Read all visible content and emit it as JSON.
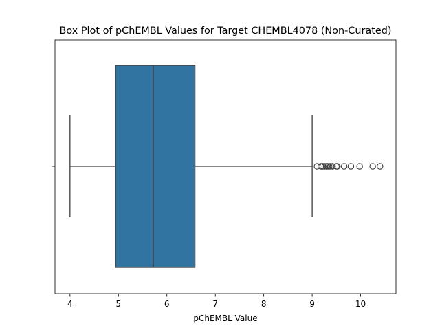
{
  "chart_data": {
    "type": "box",
    "title": "Box Plot of pChEMBL Values for Target CHEMBL4078 (Non-Curated)",
    "xlabel": "pChEMBL Value",
    "ylabel": "",
    "orientation": "horizontal",
    "xlim": [
      3.69,
      10.73
    ],
    "x_ticks": [
      4,
      5,
      6,
      7,
      8,
      9,
      10
    ],
    "grid": false,
    "box": {
      "whisker_low": 4.0,
      "q1": 4.94,
      "median": 5.72,
      "q3": 6.58,
      "whisker_high": 9.0
    },
    "outliers": [
      9.1,
      9.18,
      9.22,
      9.26,
      9.29,
      9.32,
      9.35,
      9.38,
      9.42,
      9.5,
      9.52,
      9.66,
      9.8,
      9.98,
      10.25,
      10.4
    ],
    "colors": {
      "box_fill": "#3274a1",
      "line": "#3d3d3d",
      "axes": "#000000"
    }
  }
}
